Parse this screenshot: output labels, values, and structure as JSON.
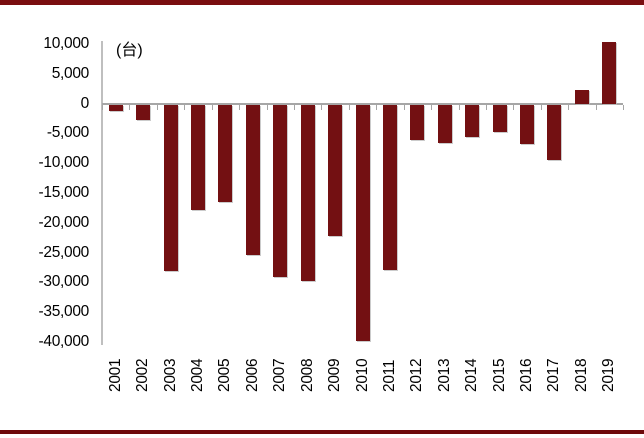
{
  "page": {
    "top_border_color": "#7a0e10",
    "bottom_border_color": "#6e0a0c",
    "background": "#ffffff"
  },
  "chart_data": {
    "type": "bar",
    "title": "",
    "unit_label": "(台)",
    "categories": [
      "2001",
      "2002",
      "2003",
      "2004",
      "2005",
      "2006",
      "2007",
      "2008",
      "2009",
      "2010",
      "2011",
      "2012",
      "2013",
      "2014",
      "2015",
      "2016",
      "2017",
      "2018",
      "2019"
    ],
    "values": [
      -1100,
      -2600,
      -27900,
      -17700,
      -16300,
      -25200,
      -28900,
      -29600,
      -22100,
      -39700,
      -27700,
      -5900,
      -6400,
      -5400,
      -4600,
      -6600,
      -9300,
      2300,
      10300
    ],
    "bar_color": "#731012",
    "axis_color": "#a6a6a6",
    "y_axis_line_color": "#bfbfbf",
    "ylim": [
      -40000,
      10000
    ],
    "y_ticks": {
      "values": [
        10000,
        5000,
        0,
        -5000,
        -10000,
        -15000,
        -20000,
        -25000,
        -30000,
        -35000,
        -40000
      ],
      "labels": [
        "10,000",
        "5,000",
        "0",
        "-5,000",
        "-10,000",
        "-15,000",
        "-20,000",
        "-25,000",
        "-30,000",
        "-35,000",
        "-40,000"
      ]
    },
    "grid": false,
    "legend": false,
    "xlabel": "",
    "ylabel": ""
  }
}
